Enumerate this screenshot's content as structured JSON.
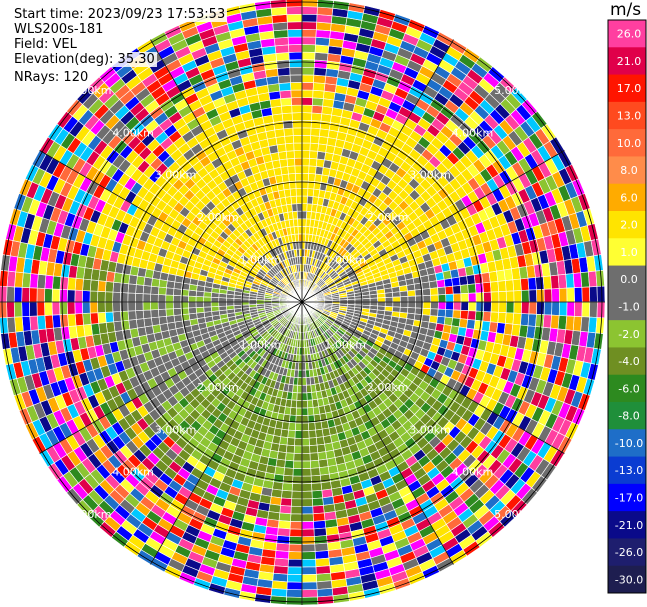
{
  "header": {
    "start_time": "Start time: 2023/09/23 17:53:53",
    "site": "WLS200s-181",
    "field": "Field: VEL",
    "elevation": "Elevation(deg): 35.30",
    "nrays": "NRays: 120"
  },
  "chart_data": {
    "type": "polar_ppi",
    "field": "VEL",
    "unit": "m/s",
    "nrays": 120,
    "ring_labels": [
      "1.00km",
      "2.00km",
      "3.00km",
      "4.00km",
      "5.00km"
    ],
    "colorbar": {
      "title": "m/s",
      "ticks": [
        "26.0",
        "21.0",
        "17.0",
        "13.0",
        "10.0",
        "8.0",
        "6.0",
        "2.0",
        "1.0",
        "0.0",
        "-1.0",
        "-2.0",
        "-4.0",
        "-6.0",
        "-8.0",
        "-10.0",
        "-13.0",
        "-17.0",
        "-21.0",
        "-26.0",
        "-30.0"
      ],
      "colors": [
        "#ff3fa0",
        "#e0004a",
        "#ff1500",
        "#ff4a1f",
        "#ff6a3a",
        "#ff8c4a",
        "#ffab00",
        "#ffe400",
        "#ffff33",
        "#6e6e6e",
        "#6e6e6e",
        "#8cc431",
        "#6f8f22",
        "#2d8a1f",
        "#1f8f3a",
        "#1e6ec8",
        "#0a3cd2",
        "#0000ff",
        "#0a0a8a",
        "#1e1e6e",
        "#1e1e50"
      ]
    }
  }
}
